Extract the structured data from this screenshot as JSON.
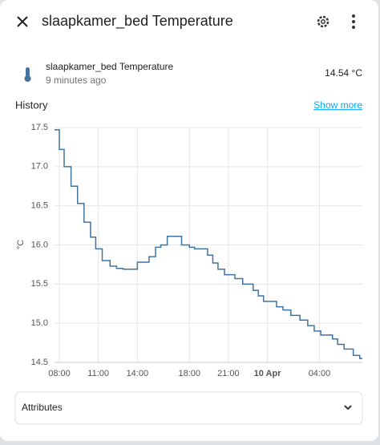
{
  "header": {
    "title": "slaapkamer_bed Temperature"
  },
  "entity": {
    "name": "slaapkamer_bed Temperature",
    "updated": "9 minutes ago",
    "state": "14.54 °C"
  },
  "history": {
    "title": "History",
    "link": "Show more"
  },
  "chart_data": {
    "type": "line",
    "y_label": "°C",
    "step": true,
    "grid": true,
    "xlim": [
      7.63,
      31.3
    ],
    "ylim": [
      14.5,
      17.5
    ],
    "xticks": [
      {
        "value": 8,
        "label": "08:00"
      },
      {
        "value": 11,
        "label": "11:00"
      },
      {
        "value": 14,
        "label": "14:00"
      },
      {
        "value": 18,
        "label": "18:00"
      },
      {
        "value": 21,
        "label": "21:00"
      },
      {
        "value": 24,
        "label": "10 Apr"
      },
      {
        "value": 28,
        "label": "04:00"
      }
    ],
    "yticks": [
      14.5,
      {
        "value": 15,
        "label": "15.0"
      },
      15.5,
      {
        "value": 16,
        "label": "16.0"
      },
      16.5,
      {
        "value": 17,
        "label": "17.0"
      },
      17.5
    ],
    "x": [
      7.63,
      8.0,
      8.37,
      8.9,
      9.4,
      9.9,
      10.4,
      10.8,
      11.3,
      11.9,
      12.4,
      12.9,
      14.0,
      14.9,
      15.4,
      15.8,
      16.3,
      17.4,
      18.0,
      18.4,
      19.4,
      19.8,
      20.2,
      20.7,
      21.5,
      22.1,
      22.9,
      23.3,
      23.7,
      24.7,
      25.2,
      25.8,
      26.5,
      27.1,
      27.6,
      28.1,
      29.0,
      29.4,
      29.9,
      30.6,
      31.1
    ],
    "series": [
      {
        "name": "slaapkamer_bed Temperature",
        "color": "#3f73a3",
        "values": [
          17.47,
          17.22,
          17.0,
          16.75,
          16.53,
          16.29,
          16.1,
          15.95,
          15.8,
          15.73,
          15.7,
          15.69,
          15.78,
          15.85,
          15.97,
          16.0,
          16.11,
          16.0,
          15.97,
          15.95,
          15.87,
          15.77,
          15.69,
          15.62,
          15.57,
          15.5,
          15.42,
          15.35,
          15.28,
          15.21,
          15.17,
          15.1,
          15.04,
          14.97,
          14.9,
          14.85,
          14.8,
          14.73,
          14.67,
          14.59,
          14.55
        ]
      }
    ]
  },
  "attributes": {
    "label": "Attributes"
  }
}
